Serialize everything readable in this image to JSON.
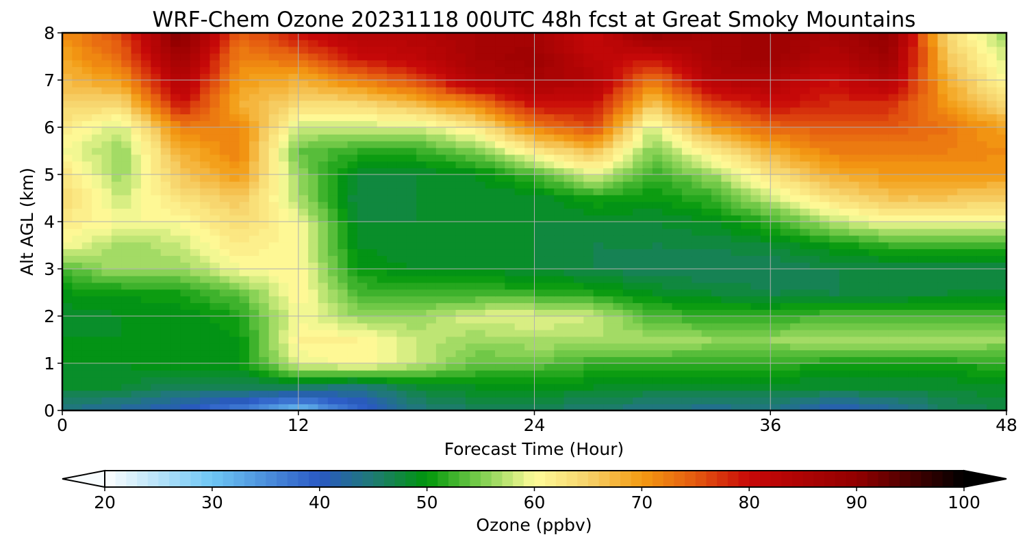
{
  "chart_data": {
    "type": "heatmap",
    "title": "WRF-Chem Ozone  20231118 00UTC 48h fcst at Great Smoky Mountains",
    "xlabel": "Forecast Time (Hour)",
    "ylabel": "Alt AGL (km)",
    "xlim": [
      0,
      48
    ],
    "ylim": [
      0,
      8
    ],
    "xticks": [
      "0",
      "12",
      "24",
      "36",
      "48"
    ],
    "yticks": [
      "0",
      "1",
      "2",
      "3",
      "4",
      "5",
      "6",
      "7",
      "8"
    ],
    "grid": true,
    "x_hours": [
      0,
      3,
      6,
      9,
      12,
      15,
      18,
      21,
      24,
      27,
      30,
      33,
      36,
      39,
      42,
      45,
      48
    ],
    "z_km": [
      0,
      0.5,
      1,
      1.5,
      2,
      2.5,
      3,
      3.5,
      4,
      4.5,
      5,
      5.5,
      6,
      6.5,
      7,
      7.5,
      8
    ],
    "values_ppbv": [
      [
        44,
        42,
        40,
        36,
        30,
        38,
        44,
        46,
        46,
        45,
        44,
        43,
        44,
        40,
        42,
        46,
        47
      ],
      [
        48,
        48,
        46,
        46,
        46,
        44,
        48,
        49,
        49,
        49,
        48,
        48,
        48,
        48,
        48,
        48,
        49
      ],
      [
        49,
        49,
        50,
        50,
        59,
        61,
        58,
        54,
        54,
        52,
        52,
        52,
        52,
        51,
        51,
        51,
        52
      ],
      [
        49,
        49,
        49,
        50,
        61,
        61,
        58,
        56,
        57,
        57,
        57,
        56,
        56,
        57,
        57,
        57,
        56
      ],
      [
        48,
        49,
        49,
        51,
        60,
        56,
        56,
        59,
        59,
        58,
        53,
        52,
        52,
        53,
        53,
        53,
        53
      ],
      [
        50,
        50,
        51,
        54,
        61,
        53,
        52,
        52,
        52,
        51,
        49,
        48,
        47,
        47,
        47,
        48,
        48
      ],
      [
        53,
        57,
        56,
        60,
        61,
        50,
        49,
        49,
        48,
        47,
        46,
        46,
        46,
        47,
        47,
        47,
        47
      ],
      [
        60,
        56,
        58,
        62,
        60,
        49,
        48,
        48,
        48,
        47,
        47,
        47,
        48,
        50,
        52,
        52,
        52
      ],
      [
        62,
        60,
        60,
        64,
        60,
        48,
        48,
        48,
        48,
        48,
        48,
        49,
        52,
        57,
        60,
        60,
        60
      ],
      [
        64,
        58,
        63,
        66,
        57,
        47,
        48,
        48,
        48,
        51,
        50,
        52,
        58,
        63,
        66,
        66,
        65
      ],
      [
        63,
        56,
        66,
        70,
        56,
        48,
        48,
        49,
        53,
        59,
        52,
        56,
        63,
        68,
        70,
        70,
        70
      ],
      [
        60,
        56,
        68,
        72,
        54,
        52,
        52,
        55,
        62,
        67,
        55,
        62,
        68,
        72,
        72,
        72,
        71
      ],
      [
        62,
        58,
        72,
        72,
        58,
        58,
        58,
        62,
        72,
        76,
        58,
        70,
        74,
        75,
        75,
        73,
        69
      ],
      [
        65,
        64,
        80,
        68,
        64,
        64,
        67,
        72,
        80,
        80,
        66,
        76,
        80,
        78,
        78,
        70,
        64
      ],
      [
        67,
        70,
        84,
        70,
        68,
        72,
        76,
        84,
        86,
        84,
        72,
        84,
        84,
        80,
        84,
        68,
        60
      ],
      [
        69,
        74,
        88,
        72,
        74,
        80,
        82,
        86,
        88,
        82,
        80,
        86,
        88,
        84,
        88,
        66,
        58
      ],
      [
        71,
        76,
        92,
        74,
        80,
        84,
        84,
        86,
        86,
        80,
        90,
        86,
        88,
        86,
        90,
        64,
        56
      ]
    ],
    "colorbar": {
      "label": "Ozone  (ppbv)",
      "min": 20,
      "max": 100,
      "step": 1,
      "extend": "both",
      "ticks": [
        "20",
        "30",
        "40",
        "50",
        "60",
        "70",
        "80",
        "90",
        "100"
      ],
      "color_stops": [
        {
          "v": 20,
          "c": "#ffffff"
        },
        {
          "v": 30,
          "c": "#6ec6f4"
        },
        {
          "v": 40,
          "c": "#2a58c4"
        },
        {
          "v": 45,
          "c": "#1f7a74"
        },
        {
          "v": 50,
          "c": "#00960a"
        },
        {
          "v": 55,
          "c": "#7ccd4e"
        },
        {
          "v": 60,
          "c": "#fffc9a"
        },
        {
          "v": 65,
          "c": "#f6d26a"
        },
        {
          "v": 70,
          "c": "#f39a12"
        },
        {
          "v": 75,
          "c": "#e45a10"
        },
        {
          "v": 80,
          "c": "#c80808"
        },
        {
          "v": 90,
          "c": "#920000"
        },
        {
          "v": 100,
          "c": "#000000"
        }
      ]
    }
  }
}
